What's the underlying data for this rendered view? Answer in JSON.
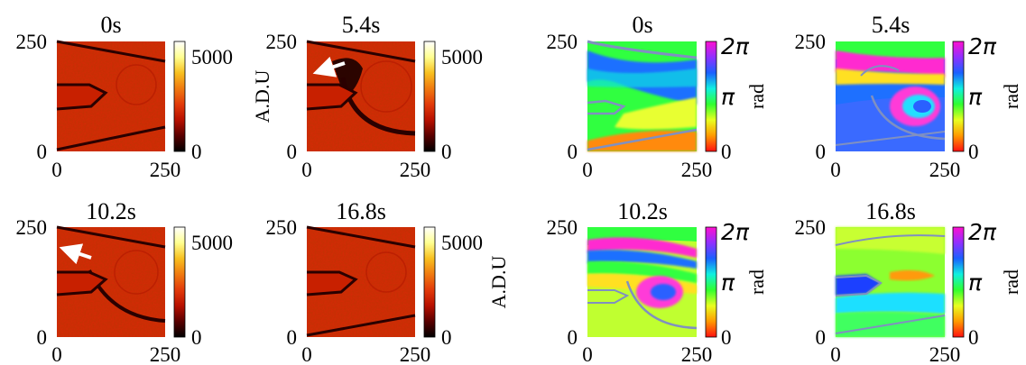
{
  "figure": {
    "intensity_panels": [
      {
        "title": "0s",
        "x_ticks": [
          "0",
          "250"
        ],
        "y_ticks": [
          "0",
          "250"
        ],
        "colorbar": {
          "ticks": [
            "0",
            "5000"
          ],
          "label": ""
        },
        "arrow": false
      },
      {
        "title": "5.4s",
        "x_ticks": [
          "0",
          "250"
        ],
        "y_ticks": [
          "0",
          "250"
        ],
        "colorbar": {
          "ticks": [
            "0",
            "5000"
          ],
          "label": "A.D.U"
        },
        "arrow": true
      },
      {
        "title": "10.2s",
        "x_ticks": [
          "0",
          "250"
        ],
        "y_ticks": [
          "0",
          "250"
        ],
        "colorbar": {
          "ticks": [
            "0",
            "5000"
          ],
          "label": ""
        },
        "arrow": true
      },
      {
        "title": "16.8s",
        "x_ticks": [
          "0",
          "250"
        ],
        "y_ticks": [
          "0",
          "250"
        ],
        "colorbar": {
          "ticks": [
            "0",
            "5000"
          ],
          "label": "A.D.U"
        },
        "arrow": false
      }
    ],
    "phase_panels": [
      {
        "title": "0s",
        "x_ticks": [
          "0",
          "250"
        ],
        "y_ticks": [
          "0",
          "250"
        ],
        "colorbar": {
          "ticks": [
            "0",
            "π",
            "2π"
          ],
          "label": "rad"
        }
      },
      {
        "title": "5.4s",
        "x_ticks": [
          "0",
          "250"
        ],
        "y_ticks": [
          "0",
          "250"
        ],
        "colorbar": {
          "ticks": [
            "0",
            "π",
            "2π"
          ],
          "label": "rad"
        }
      },
      {
        "title": "10.2s",
        "x_ticks": [
          "0",
          "250"
        ],
        "y_ticks": [
          "0",
          "250"
        ],
        "colorbar": {
          "ticks": [
            "0",
            "π",
            "2π"
          ],
          "label": "rad"
        }
      },
      {
        "title": "16.8s",
        "x_ticks": [
          "0",
          "250"
        ],
        "y_ticks": [
          "0",
          "250"
        ],
        "colorbar": {
          "ticks": [
            "0",
            "π",
            "2π"
          ],
          "label": "rad"
        }
      }
    ],
    "colors": {
      "intensity_colormap": [
        "#000000",
        "#5a0000",
        "#b81000",
        "#e23a0a",
        "#f07a10",
        "#f8c020",
        "#ffff90",
        "#ffffff"
      ],
      "phase_colormap": [
        "#ff1010",
        "#ff9a00",
        "#e8ff20",
        "#30ff30",
        "#10f0e0",
        "#1a60ff",
        "#9030ff",
        "#ff10d0"
      ],
      "boundary": "#1a0000"
    }
  }
}
